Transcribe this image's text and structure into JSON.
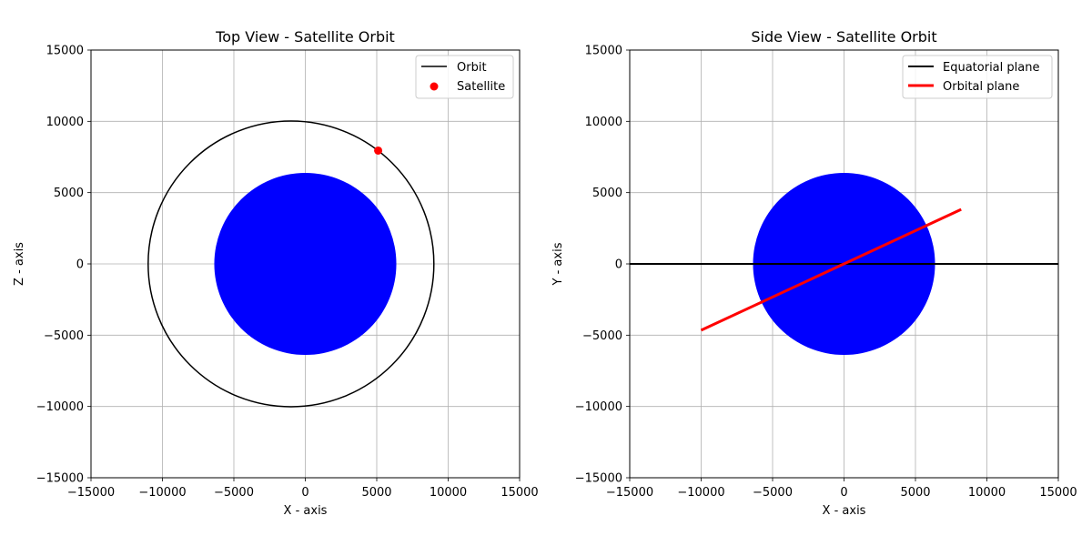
{
  "chart_data": [
    {
      "type": "line",
      "title": "Top View - Satellite Orbit",
      "xlabel": "X - axis",
      "ylabel": "Z - axis",
      "xlim": [
        -15000,
        15000
      ],
      "ylim": [
        -15000,
        15000
      ],
      "xticks": [
        -15000,
        -10000,
        -5000,
        0,
        5000,
        10000,
        15000
      ],
      "yticks": [
        -15000,
        -10000,
        -5000,
        0,
        5000,
        10000,
        15000
      ],
      "grid": true,
      "legend_position": "top-right",
      "earth": {
        "center": [
          0,
          0
        ],
        "radius": 6371,
        "color": "#0000ff"
      },
      "orbit": {
        "name": "Orbit",
        "center": [
          -1000,
          0
        ],
        "radius": 10000,
        "color": "#000000"
      },
      "satellite": {
        "name": "Satellite",
        "x": 5100,
        "z": 7950,
        "color": "#ff0000"
      }
    },
    {
      "type": "line",
      "title": "Side View - Satellite Orbit",
      "xlabel": "X - axis",
      "ylabel": "Y - axis",
      "xlim": [
        -15000,
        15000
      ],
      "ylim": [
        -15000,
        15000
      ],
      "xticks": [
        -15000,
        -10000,
        -5000,
        0,
        5000,
        10000,
        15000
      ],
      "yticks": [
        -15000,
        -10000,
        -5000,
        0,
        5000,
        10000,
        15000
      ],
      "grid": true,
      "legend_position": "top-right",
      "earth": {
        "center": [
          0,
          0
        ],
        "radius": 6371,
        "color": "#0000ff"
      },
      "series": [
        {
          "name": "Equatorial plane",
          "x": [
            -15000,
            15000
          ],
          "y": [
            0,
            0
          ],
          "color": "#000000"
        },
        {
          "name": "Orbital plane",
          "x": [
            -10000,
            8200
          ],
          "y": [
            -4650,
            3820
          ],
          "color": "#ff0000"
        }
      ]
    }
  ]
}
